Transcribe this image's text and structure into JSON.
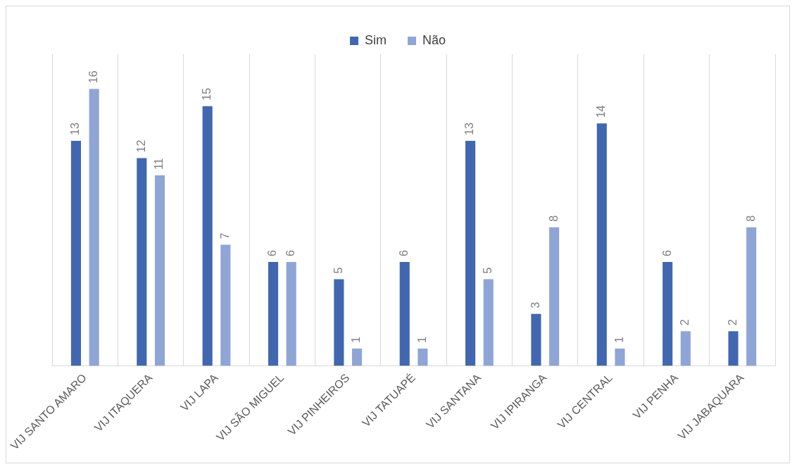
{
  "chart_data": {
    "type": "bar",
    "categories": [
      "VIJ SANTO AMARO",
      "VIJ ITAQUERA",
      "VIJ LAPA",
      "VIJ SÃO MIGUEL",
      "VIJ PINHEIROS",
      "VIJ TATUAPÉ",
      "VIJ SANTANA",
      "VIJ IPIRANGA",
      "VIJ CENTRAL",
      "VIJ PENHA",
      "VIJ JABAQUARA"
    ],
    "series": [
      {
        "name": "Sim",
        "color": "#4167b0",
        "values": [
          13,
          12,
          15,
          6,
          5,
          6,
          13,
          3,
          14,
          6,
          2
        ]
      },
      {
        "name": "Não",
        "color": "#8fa5d6",
        "values": [
          16,
          11,
          7,
          6,
          1,
          1,
          5,
          8,
          1,
          2,
          8
        ]
      }
    ],
    "data_labels": true,
    "grid": "x",
    "legend": "top"
  }
}
